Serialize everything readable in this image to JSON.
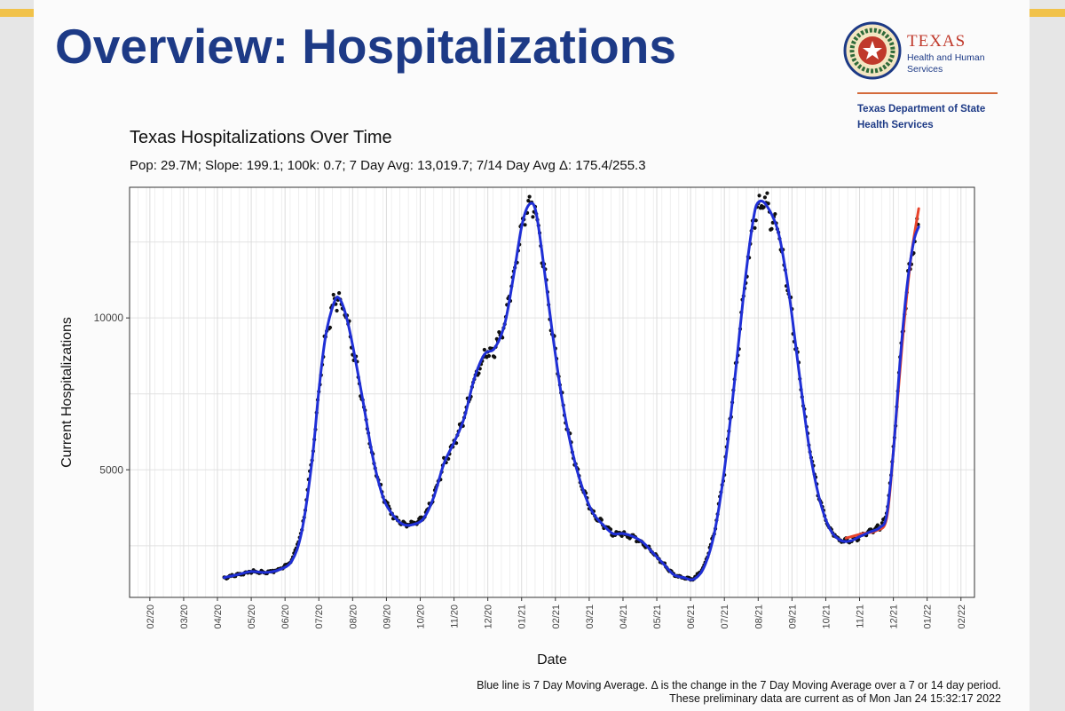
{
  "slide": {
    "title": "Overview: Hospitalizations",
    "logo": {
      "name": "TEXAS",
      "line1": "Health and Human",
      "line2": "Services",
      "dept1": "Texas Department of State",
      "dept2": "Health Services"
    },
    "footnote1": "Blue line is 7 Day Moving Average. Δ is the change in the 7 Day Moving Average over a 7 or 14 day period.",
    "footnote2": "These preliminary data are current as of Mon Jan 24 15:32:17 2022"
  },
  "colors": {
    "accent_bar": "#f1c24a",
    "title": "#1d3a86",
    "avg_line": "#1f2fd6",
    "trend_line": "#e8442c",
    "points": "#111111"
  },
  "chart_data": {
    "type": "scatter",
    "title": "Texas Hospitalizations Over Time",
    "subtitle": "Pop: 29.7M; Slope: 199.1; 100k: 0.7; 7 Day Avg: 13,019.7; 7/14 Day Avg Δ: 175.4/255.3",
    "xlabel": "Date",
    "ylabel": "Current Hospitalizations",
    "xlim": [
      -0.6,
      24.4
    ],
    "ylim": [
      800,
      14300
    ],
    "yticks": [
      5000,
      10000
    ],
    "xtick_labels": [
      "02/20",
      "03/20",
      "04/20",
      "05/20",
      "06/20",
      "07/20",
      "08/20",
      "09/20",
      "10/20",
      "11/20",
      "12/20",
      "01/21",
      "02/21",
      "03/21",
      "04/21",
      "05/21",
      "06/21",
      "07/21",
      "08/21",
      "09/21",
      "10/21",
      "11/21",
      "12/21",
      "01/22",
      "02/22"
    ],
    "grid": true,
    "series": [
      {
        "name": "7 Day Moving Average",
        "style": "line",
        "points": [
          [
            2.2,
            1450
          ],
          [
            2.6,
            1550
          ],
          [
            3.0,
            1650
          ],
          [
            3.4,
            1620
          ],
          [
            3.8,
            1700
          ],
          [
            4.2,
            2000
          ],
          [
            4.5,
            3000
          ],
          [
            4.8,
            5300
          ],
          [
            5.0,
            7600
          ],
          [
            5.2,
            9400
          ],
          [
            5.45,
            10500
          ],
          [
            5.6,
            10650
          ],
          [
            5.8,
            10100
          ],
          [
            6.0,
            9100
          ],
          [
            6.3,
            7300
          ],
          [
            6.6,
            5400
          ],
          [
            6.9,
            4100
          ],
          [
            7.2,
            3500
          ],
          [
            7.5,
            3200
          ],
          [
            7.8,
            3200
          ],
          [
            8.1,
            3400
          ],
          [
            8.4,
            4100
          ],
          [
            8.7,
            5200
          ],
          [
            9.0,
            5900
          ],
          [
            9.3,
            6700
          ],
          [
            9.6,
            8000
          ],
          [
            9.9,
            8800
          ],
          [
            10.2,
            9000
          ],
          [
            10.5,
            9800
          ],
          [
            10.75,
            11300
          ],
          [
            11.0,
            13000
          ],
          [
            11.2,
            13700
          ],
          [
            11.4,
            13600
          ],
          [
            11.6,
            12200
          ],
          [
            11.9,
            9600
          ],
          [
            12.2,
            7300
          ],
          [
            12.5,
            5600
          ],
          [
            12.8,
            4400
          ],
          [
            13.1,
            3600
          ],
          [
            13.4,
            3200
          ],
          [
            13.7,
            2900
          ],
          [
            14.0,
            2900
          ],
          [
            14.3,
            2800
          ],
          [
            14.6,
            2600
          ],
          [
            14.9,
            2250
          ],
          [
            15.2,
            1900
          ],
          [
            15.5,
            1550
          ],
          [
            15.8,
            1450
          ],
          [
            16.1,
            1400
          ],
          [
            16.4,
            1800
          ],
          [
            16.7,
            2900
          ],
          [
            17.0,
            5000
          ],
          [
            17.3,
            7900
          ],
          [
            17.6,
            11100
          ],
          [
            17.85,
            13200
          ],
          [
            18.0,
            13800
          ],
          [
            18.25,
            13700
          ],
          [
            18.6,
            12800
          ],
          [
            18.9,
            10900
          ],
          [
            19.2,
            8300
          ],
          [
            19.5,
            5800
          ],
          [
            19.8,
            4100
          ],
          [
            20.1,
            3100
          ],
          [
            20.4,
            2700
          ],
          [
            20.7,
            2650
          ],
          [
            21.0,
            2800
          ],
          [
            21.3,
            2950
          ],
          [
            21.6,
            3100
          ],
          [
            21.8,
            3500
          ],
          [
            22.0,
            5600
          ],
          [
            22.2,
            8600
          ],
          [
            22.4,
            11000
          ],
          [
            22.6,
            12500
          ],
          [
            22.75,
            13000
          ]
        ]
      },
      {
        "name": "Trend",
        "style": "line",
        "points": [
          [
            20.6,
            2750
          ],
          [
            21.1,
            2900
          ],
          [
            21.5,
            3000
          ],
          [
            21.8,
            3400
          ],
          [
            22.0,
            5600
          ],
          [
            22.25,
            9000
          ],
          [
            22.5,
            11800
          ],
          [
            22.75,
            13600
          ]
        ]
      }
    ]
  }
}
